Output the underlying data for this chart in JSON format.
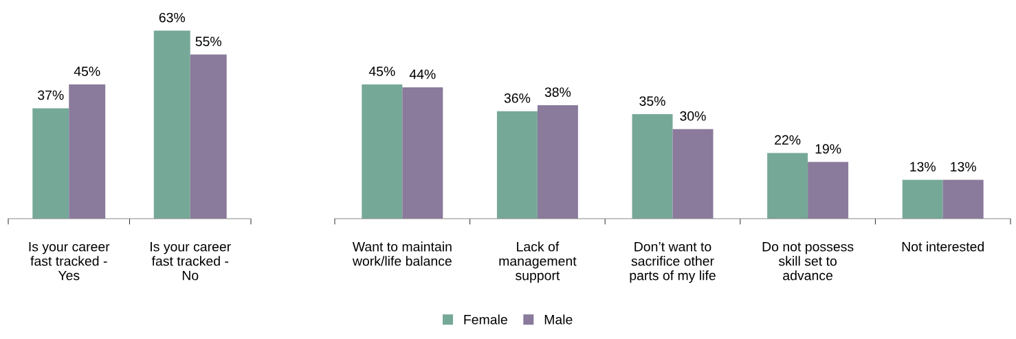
{
  "chart_data": [
    {
      "type": "bar",
      "categories": [
        "Is your career\nfast tracked -\nYes",
        "Is your career\nfast tracked -\nNo"
      ],
      "series": [
        {
          "color": "#76a898",
          "values": [
            37,
            63
          ],
          "value_labels": [
            "37%",
            "63%"
          ]
        },
        {
          "color": "#8a7a9b",
          "values": [
            45,
            55
          ],
          "value_labels": [
            "45%",
            "55%"
          ]
        }
      ],
      "legend": false
    },
    {
      "type": "bar",
      "categories": [
        "Want to maintain\nwork/life balance",
        "Lack of\nmanagement\nsupport",
        "Don’t want to\nsacrifice other\nparts of my life",
        "Do not possess\nskill set to\nadvance",
        "Not interested"
      ],
      "series": [
        {
          "name": "Female",
          "color": "#76a898",
          "values": [
            45,
            36,
            35,
            22,
            13
          ],
          "value_labels": [
            "45%",
            "36%",
            "35%",
            "22%",
            "13%"
          ]
        },
        {
          "name": "Male",
          "color": "#8a7a9b",
          "values": [
            44,
            38,
            30,
            19,
            13
          ],
          "value_labels": [
            "44%",
            "38%",
            "30%",
            "19%",
            "13%"
          ]
        }
      ],
      "legend": "bottom"
    }
  ]
}
